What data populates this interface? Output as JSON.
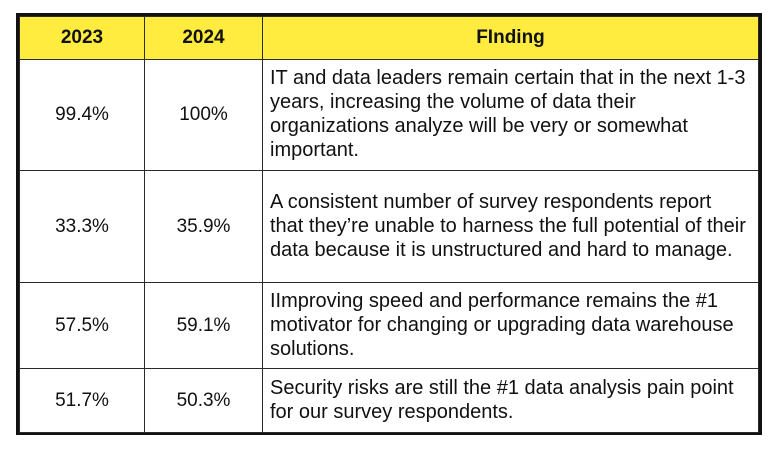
{
  "table": {
    "headers": [
      "2023",
      "2024",
      "FInding"
    ],
    "rows": [
      {
        "y2023": "99.4%",
        "y2024": "100%",
        "finding": "IT and data leaders remain certain that in the next 1-3 years, increasing the volume of data their organizations analyze will be very or somewhat important."
      },
      {
        "y2023": "33.3%",
        "y2024": "35.9%",
        "finding": "A consistent number of survey respondents report that they’re unable to harness the full potential of their data because it is unstructured and hard to manage."
      },
      {
        "y2023": "57.5%",
        "y2024": "59.1%",
        "finding": "IImproving speed and performance remains the #1 motivator for changing or upgrading data warehouse solutions."
      },
      {
        "y2023": "51.7%",
        "y2024": "50.3%",
        "finding": "Security risks are still the #1 data analysis pain point for our survey respondents."
      }
    ]
  },
  "colors": {
    "header_bg": "#ffec3f",
    "border": "#111111",
    "text": "#111111"
  }
}
